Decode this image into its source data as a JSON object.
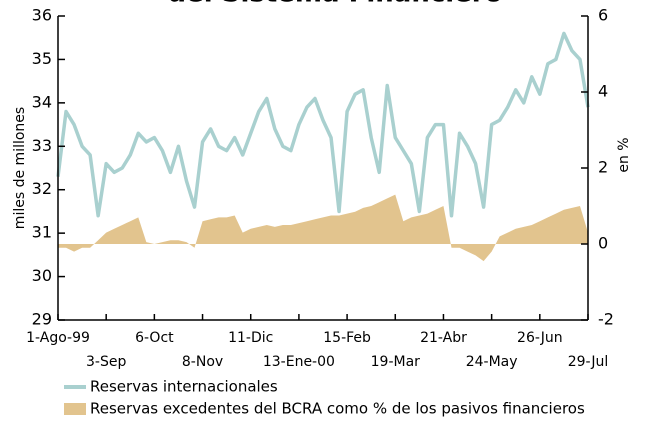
{
  "chart_data": {
    "type": "line",
    "title": "del Sistema Financiero",
    "ylabel": "miles de millones",
    "y2label": "en %",
    "categories": [
      "1-Ago-99",
      null,
      null,
      null,
      null,
      null,
      "3-Sep",
      null,
      null,
      null,
      null,
      null,
      "6-Oct",
      null,
      null,
      null,
      null,
      null,
      "8-Nov",
      null,
      null,
      null,
      null,
      null,
      "11-Dic",
      null,
      null,
      null,
      null,
      null,
      "13-Ene-00",
      null,
      null,
      null,
      null,
      null,
      "15-Feb",
      null,
      null,
      null,
      null,
      null,
      "19-Mar",
      null,
      null,
      null,
      null,
      null,
      "21-Abr",
      null,
      null,
      null,
      null,
      null,
      "24-May",
      null,
      null,
      null,
      null,
      null,
      "26-Jun",
      null,
      null,
      null,
      null,
      null,
      "29-Jul"
    ],
    "series": [
      {
        "name": "Reservas internacionales",
        "type": "line",
        "color": "#a9d0cf",
        "values": [
          32.3,
          33.8,
          33.5,
          33.0,
          32.8,
          31.4,
          32.6,
          32.4,
          32.5,
          32.8,
          33.3,
          33.1,
          33.2,
          32.9,
          32.4,
          33.0,
          32.2,
          31.6,
          33.1,
          33.4,
          33.0,
          32.9,
          33.2,
          32.8,
          33.3,
          33.8,
          34.1,
          33.4,
          33.0,
          32.9,
          33.5,
          33.9,
          34.1,
          33.6,
          33.2,
          31.5,
          33.8,
          34.2,
          34.3,
          33.2,
          32.4,
          34.4,
          33.2,
          32.9,
          32.6,
          31.5,
          33.2,
          33.5,
          33.5,
          31.4,
          33.3,
          33.0,
          32.6,
          31.6,
          33.5,
          33.6,
          33.9,
          34.3,
          34.0,
          34.6,
          34.2,
          34.9,
          35.0,
          35.6,
          35.2,
          35.0,
          33.9
        ]
      },
      {
        "name": "Reservas excedentes del BCRA como % de los pasivos financieros",
        "type": "area",
        "axis": "y2",
        "color": "#e2c48e",
        "values": [
          -0.1,
          -0.1,
          -0.2,
          -0.1,
          -0.1,
          0.1,
          0.3,
          0.4,
          0.5,
          0.6,
          0.7,
          0.05,
          0.0,
          0.05,
          0.1,
          0.1,
          0.05,
          -0.1,
          0.6,
          0.65,
          0.7,
          0.7,
          0.75,
          0.3,
          0.4,
          0.45,
          0.5,
          0.45,
          0.5,
          0.5,
          0.55,
          0.6,
          0.65,
          0.7,
          0.75,
          0.75,
          0.8,
          0.85,
          0.95,
          1.0,
          1.1,
          1.2,
          1.3,
          0.6,
          0.7,
          0.75,
          0.8,
          0.9,
          1.0,
          -0.1,
          -0.1,
          -0.2,
          -0.3,
          -0.45,
          -0.2,
          0.2,
          0.3,
          0.4,
          0.45,
          0.5,
          0.6,
          0.7,
          0.8,
          0.9,
          0.95,
          1.0,
          0.3
        ]
      }
    ],
    "ylim": [
      29,
      36
    ],
    "yticks": [
      29,
      30,
      31,
      32,
      33,
      34,
      35,
      36
    ],
    "y2lim": [
      -2,
      6
    ],
    "y2ticks": [
      -2,
      0,
      2,
      4,
      6
    ],
    "grid": false
  }
}
